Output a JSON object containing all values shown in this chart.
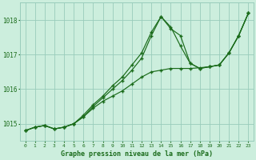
{
  "xlabel": "Graphe pression niveau de la mer (hPa)",
  "background_color": "#cceedd",
  "grid_color": "#99ccbb",
  "line_color": "#1a6b1a",
  "text_color": "#1a6b1a",
  "xlim": [
    -0.5,
    23.5
  ],
  "ylim": [
    1014.5,
    1018.5
  ],
  "yticks": [
    1015,
    1016,
    1017,
    1018
  ],
  "xtick_labels": [
    "0",
    "1",
    "2",
    "3",
    "4",
    "5",
    "6",
    "7",
    "8",
    "9",
    "10",
    "11",
    "12",
    "13",
    "14",
    "15",
    "16",
    "17",
    "18",
    "19",
    "20",
    "21",
    "22",
    "23"
  ],
  "line1": [
    1014.8,
    1014.9,
    1014.95,
    1014.85,
    1014.9,
    1015.0,
    1015.2,
    1015.45,
    1015.65,
    1015.8,
    1015.95,
    1016.15,
    1016.35,
    1016.5,
    1016.55,
    1016.6,
    1016.6,
    1016.6,
    1016.62,
    1016.65,
    1016.7,
    1017.05,
    1017.55,
    1018.2
  ],
  "line2": [
    1014.8,
    1014.9,
    1014.95,
    1014.85,
    1014.9,
    1015.0,
    1015.2,
    1015.5,
    1015.75,
    1016.0,
    1016.25,
    1016.55,
    1016.9,
    1017.55,
    1018.1,
    1017.75,
    1017.55,
    1016.75,
    1016.6,
    1016.65,
    1016.7,
    1017.05,
    1017.55,
    1018.2
  ],
  "line3": [
    1014.8,
    1014.9,
    1014.95,
    1014.85,
    1014.9,
    1015.0,
    1015.25,
    1015.55,
    1015.8,
    1016.1,
    1016.35,
    1016.7,
    1017.05,
    1017.65,
    1018.1,
    1017.8,
    1017.25,
    1016.75,
    1016.6,
    1016.65,
    1016.7,
    1017.05,
    1017.55,
    1018.2
  ]
}
